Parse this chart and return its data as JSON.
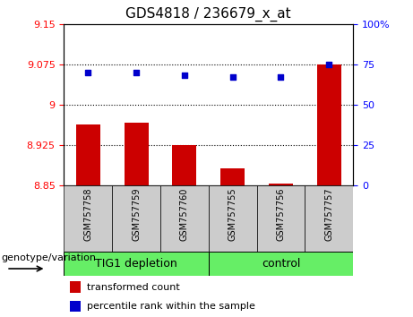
{
  "title": "GDS4818 / 236679_x_at",
  "samples": [
    "GSM757758",
    "GSM757759",
    "GSM757760",
    "GSM757755",
    "GSM757756",
    "GSM757757"
  ],
  "red_values": [
    8.963,
    8.967,
    8.925,
    8.882,
    8.853,
    9.075
  ],
  "blue_values": [
    70,
    70,
    68,
    67,
    67,
    75
  ],
  "ylim_left": [
    8.85,
    9.15
  ],
  "ylim_right": [
    0,
    100
  ],
  "yticks_left": [
    8.85,
    8.925,
    9.0,
    9.075,
    9.15
  ],
  "ytick_labels_left": [
    "8.85",
    "8.925",
    "9",
    "9.075",
    "9.15"
  ],
  "yticks_right": [
    0,
    25,
    50,
    75,
    100
  ],
  "ytick_labels_right": [
    "0",
    "25",
    "50",
    "75",
    "100%"
  ],
  "hlines": [
    9.075,
    9.0,
    8.925
  ],
  "group1_label": "TIG1 depletion",
  "group2_label": "control",
  "genotype_label": "genotype/variation",
  "legend_red": "transformed count",
  "legend_blue": "percentile rank within the sample",
  "bar_color": "#cc0000",
  "dot_color": "#0000cc",
  "group_color": "#66ee66",
  "sample_bg_color": "#cccccc",
  "title_fontsize": 11,
  "tick_fontsize": 8,
  "sample_fontsize": 7,
  "group_fontsize": 9,
  "legend_fontsize": 8,
  "genotype_fontsize": 8
}
